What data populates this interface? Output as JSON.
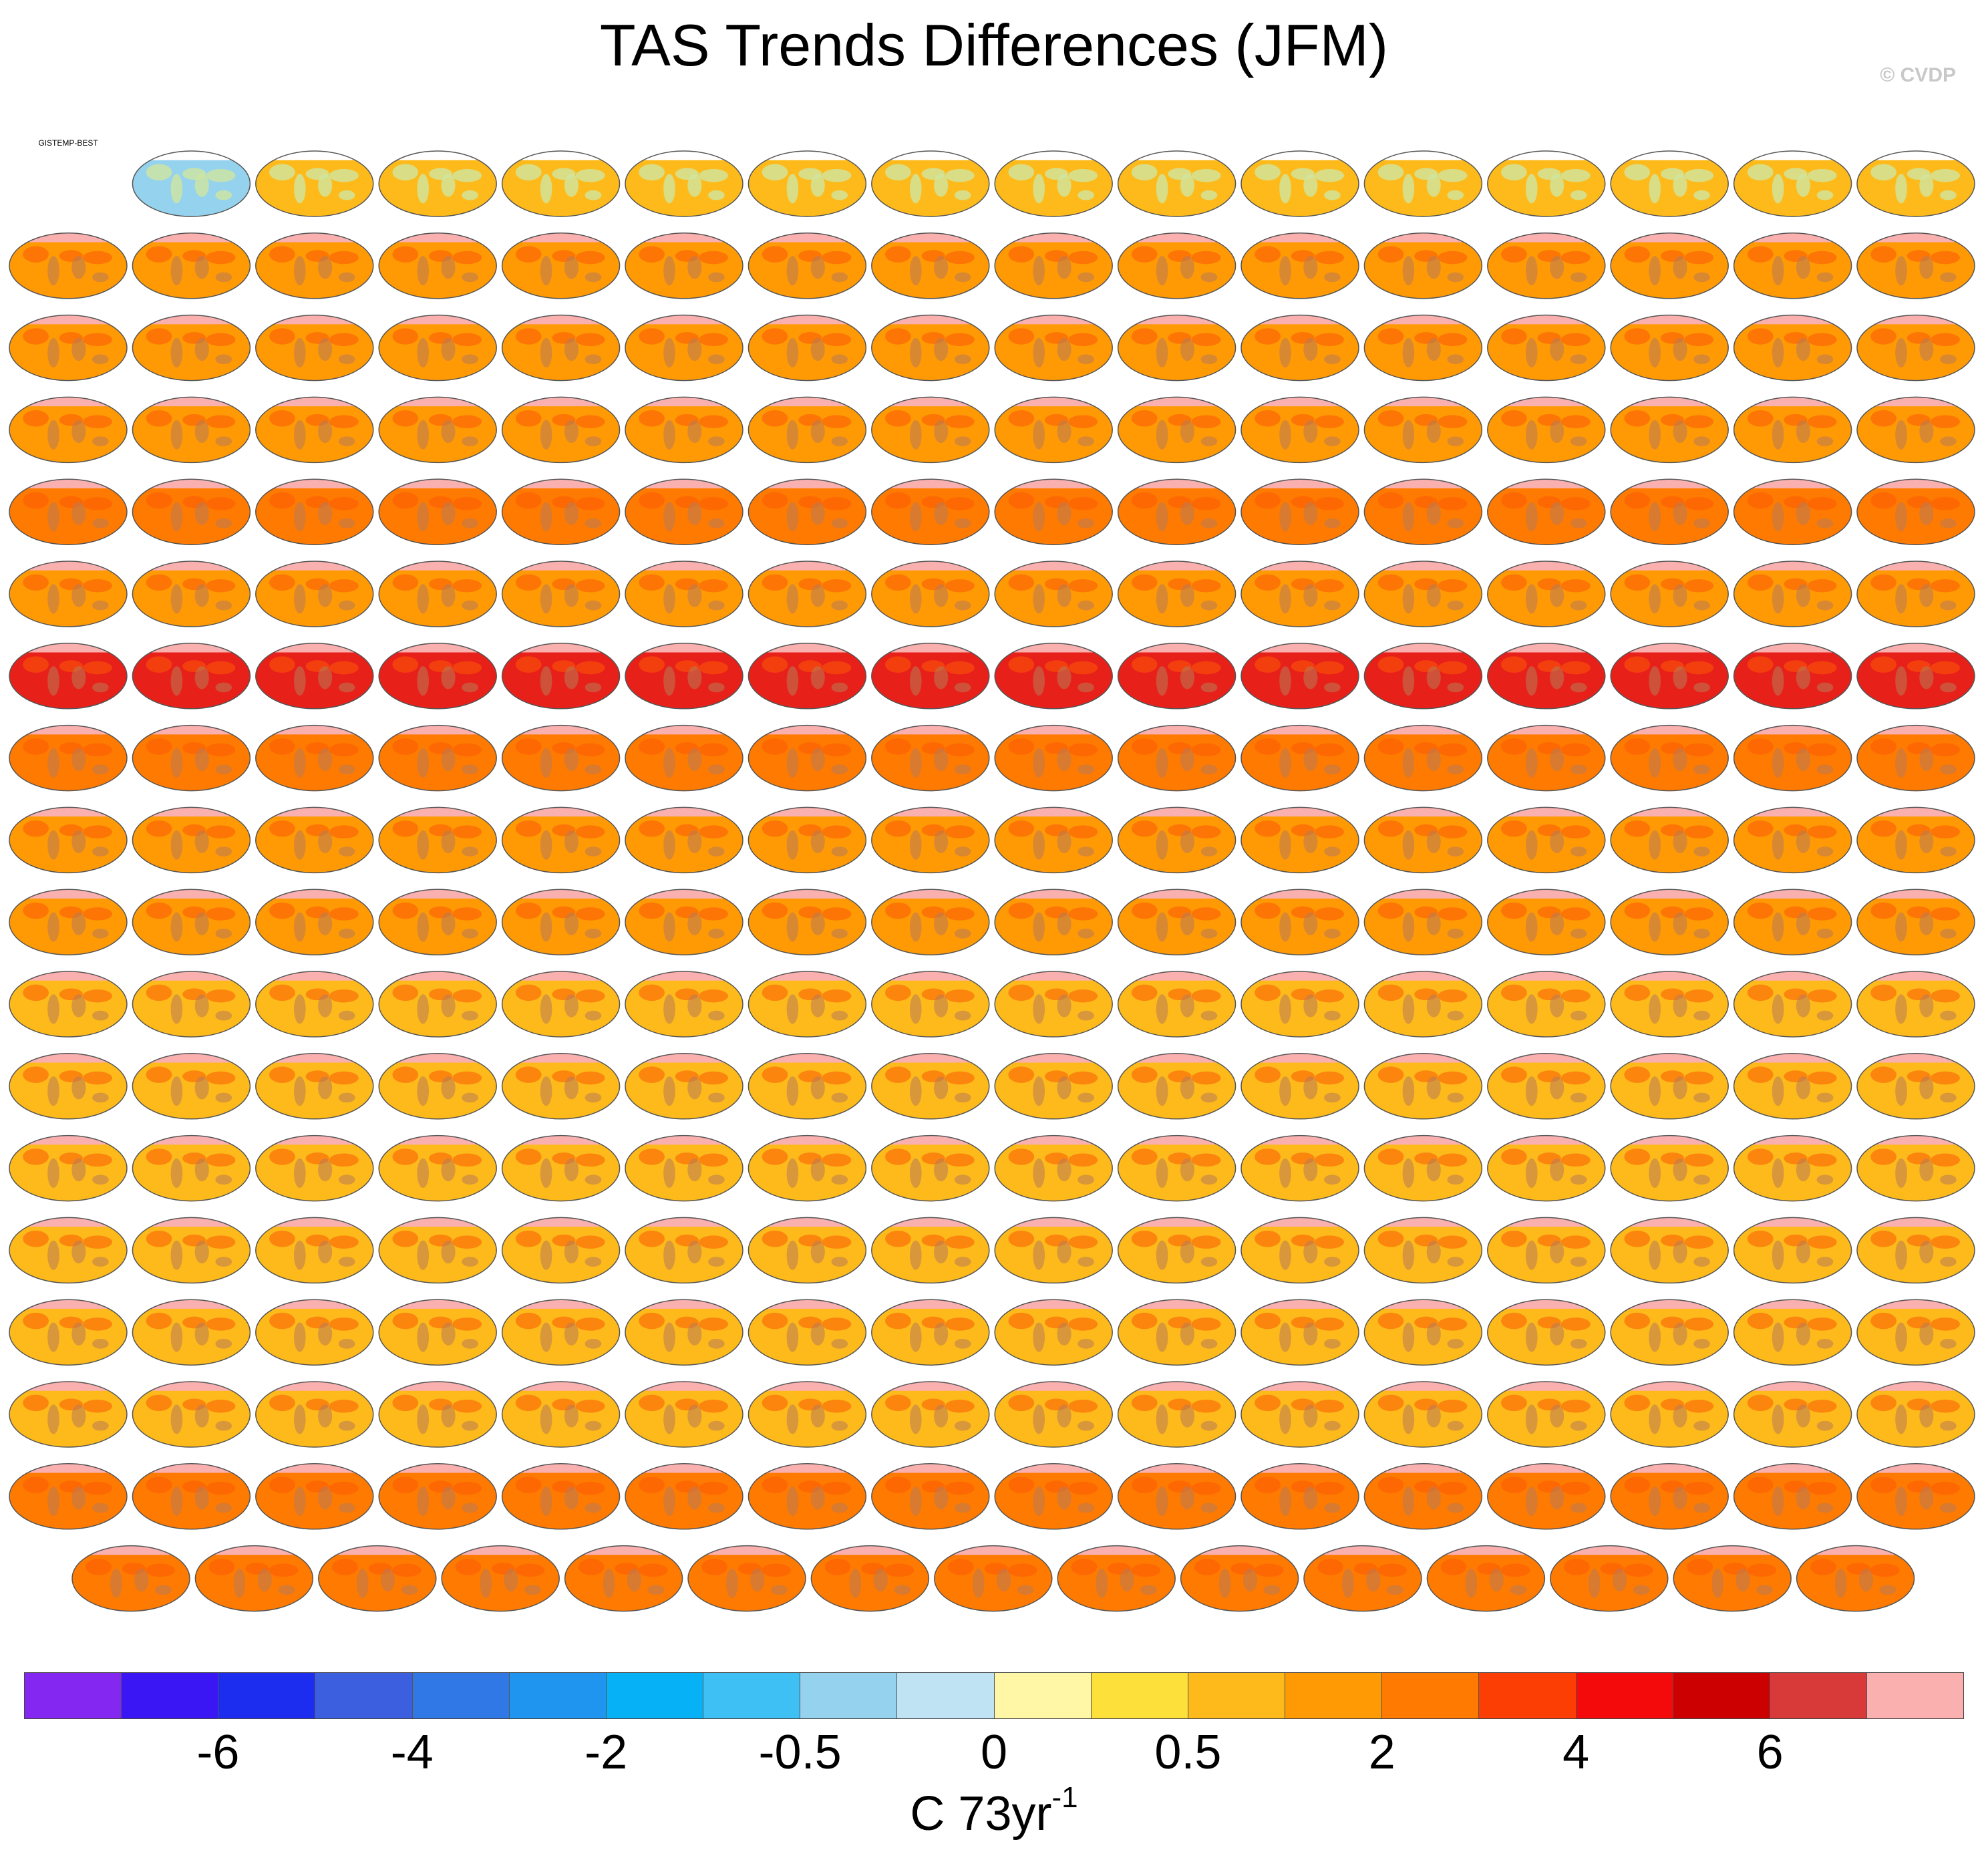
{
  "title": "TAS Trends Differences (JFM)",
  "credit": "© CVDP",
  "chart_data": {
    "type": "heatmap",
    "title": "TAS Trends Differences (JFM)",
    "description_of_layout": "Grid of global Robinson-projection difference maps (model ensemble members minus BEST), first panel GISTEMP-BEST",
    "panel_rows": [
      15,
      16,
      16,
      16,
      16,
      16,
      16,
      16,
      16,
      16,
      16,
      16,
      16,
      16,
      16,
      16,
      16,
      15
    ],
    "panel_dominant_color": [
      "#fdba1a",
      "#ff9a05",
      "#ff9a05",
      "#ff9a05",
      "#ff7a00",
      "#ff9a05",
      "#e8201a",
      "#ff7a00",
      "#ff9a05",
      "#ff9a05",
      "#fdba1a",
      "#fdba1a",
      "#fdba1a",
      "#fdba1a",
      "#fdba1a",
      "#fdba1a",
      "#ff7a00",
      "#ff7a00"
    ],
    "first_panel_label": "GISTEMP-BEST",
    "colorbar": {
      "colors": [
        "#8427f0",
        "#3a16f5",
        "#1c2df0",
        "#3c5fe0",
        "#2f78e6",
        "#2095f0",
        "#06b2f5",
        "#3fc0f5",
        "#95d2ee",
        "#bfe3f3",
        "#fff6a6",
        "#fde13a",
        "#fdba1a",
        "#ff9a05",
        "#ff7a00",
        "#fc3e05",
        "#f40a0a",
        "#cc0000",
        "#d83a3a",
        "#fbb0b0"
      ],
      "tick_labels": [
        "-6",
        "-4",
        "-2",
        "-0.5",
        "0",
        "0.5",
        "2",
        "4",
        "6"
      ],
      "tick_boundaries": [
        2,
        4,
        6,
        8,
        10,
        12,
        14,
        16,
        18
      ],
      "units": "C 73yr",
      "units_exponent": "-1"
    }
  }
}
